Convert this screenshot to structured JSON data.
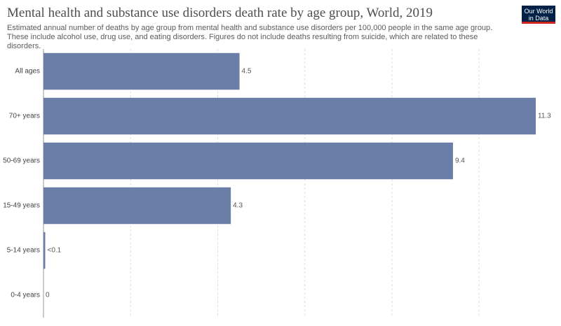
{
  "logo": "Our World in Data",
  "chart_data": {
    "type": "bar",
    "orientation": "horizontal",
    "title": "Mental health and substance use disorders death rate by age group, World, 2019",
    "subtitle": "Estimated annual number of deaths by age group from mental health and substance use disorders per 100,000 people in the same age group. These include alcohol use, drug use, and eating disorders. Figures do not include deaths resulting from suicide, which are related to these disorders.",
    "categories": [
      "All ages",
      "70+ years",
      "50-69 years",
      "15-49 years",
      "5-14 years",
      "0-4 years"
    ],
    "values": [
      4.5,
      11.3,
      9.4,
      4.3,
      0.04,
      0
    ],
    "value_labels": [
      "4.5",
      "11.3",
      "9.4",
      "4.3",
      "<0.1",
      "0"
    ],
    "color": "#6a7ea8",
    "xlim": [
      0,
      11.3
    ],
    "xticks": [
      0,
      2,
      4,
      6,
      8,
      10
    ],
    "grid": true
  }
}
